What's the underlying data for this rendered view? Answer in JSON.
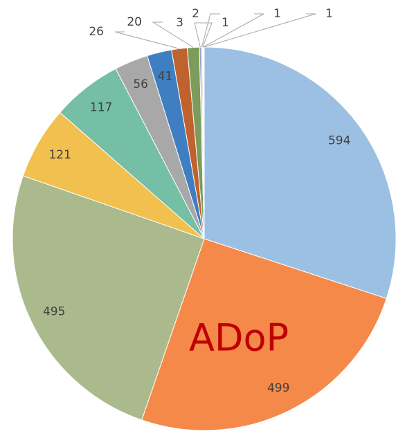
{
  "chart_data": {
    "type": "pie",
    "values": [
      594,
      499,
      495,
      121,
      117,
      56,
      41,
      26,
      20,
      3,
      2,
      1,
      1,
      1
    ],
    "colors": [
      "#9cc0e4",
      "#f4894a",
      "#abba8c",
      "#f2c04f",
      "#74bfa6",
      "#a8a8a8",
      "#3f7fc1",
      "#c0622e",
      "#7d9b5b",
      "#8fa3b8",
      "#d9a36a",
      "#9aa87a",
      "#7fa7cf",
      "#b0b0b0"
    ],
    "annotation": "ADoP"
  }
}
